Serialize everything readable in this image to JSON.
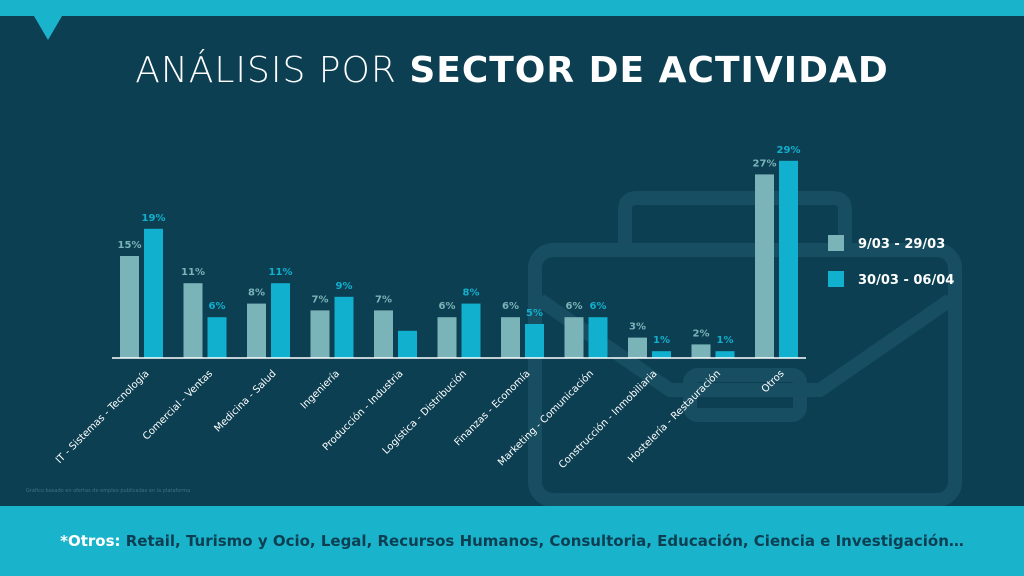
{
  "title": {
    "light": "ANÁLISIS POR ",
    "bold": "SECTOR DE ACTIVIDAD"
  },
  "colors": {
    "background": "#0c3f52",
    "accent": "#1ab3cc",
    "series1": "#7ab4b9",
    "series2": "#12b0cf"
  },
  "chart_data": {
    "type": "bar",
    "categories": [
      "IT - Sistemas - Tecnología",
      "Comercial - Ventas",
      "Medicina - Salud",
      "Ingeniería",
      "Producción - Industria",
      "Logística - Distribución",
      "Finanzas - Economía",
      "Marketing - Comunicación",
      "Construcción - Inmobiliaria",
      "Hostelería - Restauración",
      "Otros"
    ],
    "series": [
      {
        "name": "9/03 - 29/03",
        "values": [
          15,
          11,
          8,
          7,
          7,
          6,
          6,
          6,
          3,
          2,
          27
        ],
        "labels": [
          "15%",
          "11%",
          "8%",
          "7%",
          "7%",
          "6%",
          "6%",
          "6%",
          "3%",
          "2%",
          "27%"
        ]
      },
      {
        "name": "30/03 - 06/04",
        "values": [
          19,
          6,
          11,
          9,
          4,
          8,
          5,
          6,
          1,
          1,
          29
        ],
        "labels": [
          "19%",
          "6%",
          "11%",
          "9%",
          "",
          "8%",
          "5%",
          "6%",
          "1%",
          "1%",
          "29%"
        ]
      }
    ],
    "ylim": [
      0,
      30
    ],
    "legend_position": "right"
  },
  "footnote": {
    "label": "*Otros:",
    "text": " Retail, Turismo y Ocio,  Legal, Recursos Humanos, Consultoria, Educación, Ciencia e Investigación…"
  },
  "source": "Gráfico basado en ofertas de empleo publicadas en la plataforma"
}
